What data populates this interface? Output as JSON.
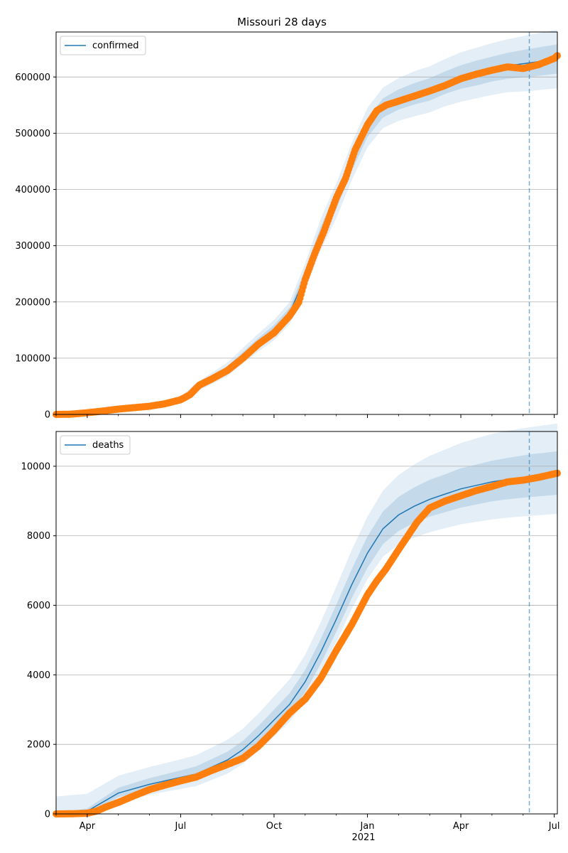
{
  "title": "Missouri 28 days",
  "colors": {
    "model": "#1f77b4",
    "observed": "#ff7f0e",
    "band": "#1f77b4",
    "grid": "#b0b0b0"
  },
  "x_axis": {
    "ticks": [
      "Apr",
      "Jul",
      "Oct",
      "Jan",
      "Apr",
      "Jul"
    ],
    "year_label": "2021"
  },
  "chart_data": [
    {
      "type": "line",
      "legend": [
        "confirmed"
      ],
      "legend_position": "upper-left",
      "grid": "horizontal",
      "x_unit": "months since 2020-03-01",
      "xlim": [
        0.0,
        16.1
      ],
      "ylim": [
        0,
        680000
      ],
      "yticks": [
        "0",
        "100000",
        "200000",
        "300000",
        "400000",
        "500000",
        "600000"
      ],
      "forecast_start": 15.2,
      "model": {
        "name": "confirmed",
        "points": [
          [
            0,
            0
          ],
          [
            1,
            3000
          ],
          [
            2,
            9000
          ],
          [
            3,
            14000
          ],
          [
            4,
            26000
          ],
          [
            4.5,
            48000
          ],
          [
            5,
            64000
          ],
          [
            5.5,
            80000
          ],
          [
            6,
            104000
          ],
          [
            6.5,
            128000
          ],
          [
            7,
            150000
          ],
          [
            7.5,
            180000
          ],
          [
            8,
            245000
          ],
          [
            8.5,
            320000
          ],
          [
            9,
            380000
          ],
          [
            9.5,
            450000
          ],
          [
            10,
            510000
          ],
          [
            10.5,
            545000
          ],
          [
            11,
            560000
          ],
          [
            11.5,
            570000
          ],
          [
            12,
            578000
          ],
          [
            12.5,
            590000
          ],
          [
            13,
            600000
          ],
          [
            13.5,
            607000
          ],
          [
            14,
            614000
          ],
          [
            14.5,
            620000
          ],
          [
            15.2,
            625000
          ],
          [
            16.1,
            632000
          ]
        ]
      },
      "bands": [
        {
          "level": "inner",
          "upper_offset": [
            0,
            500,
            1500,
            2500,
            3000,
            4000,
            5000,
            6000,
            7000,
            8000,
            9000,
            10000,
            12000,
            14000,
            15000,
            16000,
            17000,
            17000,
            18000,
            19000,
            20000,
            20000,
            21000,
            22000,
            22000,
            23000,
            25000,
            26000
          ],
          "lower_offset": [
            0,
            500,
            1500,
            2500,
            3000,
            4000,
            5000,
            6000,
            7000,
            8000,
            9000,
            10000,
            12000,
            14000,
            15000,
            16000,
            17000,
            17000,
            18000,
            19000,
            20000,
            20000,
            21000,
            22000,
            22000,
            23000,
            25000,
            26000
          ]
        },
        {
          "level": "outer",
          "upper_offset": [
            0,
            1000,
            3000,
            5000,
            6000,
            8000,
            10000,
            12000,
            14000,
            16000,
            18000,
            20000,
            24000,
            28000,
            31000,
            33000,
            35000,
            36000,
            38000,
            40000,
            41000,
            42000,
            44000,
            45000,
            46000,
            47000,
            50000,
            52000
          ],
          "lower_offset": [
            0,
            1000,
            3000,
            5000,
            6000,
            8000,
            10000,
            12000,
            14000,
            16000,
            18000,
            20000,
            24000,
            28000,
            31000,
            33000,
            35000,
            36000,
            38000,
            40000,
            41000,
            42000,
            44000,
            45000,
            46000,
            47000,
            50000,
            52000
          ]
        }
      ],
      "observed": {
        "points": [
          [
            0,
            0
          ],
          [
            0.5,
            500
          ],
          [
            1,
            3000
          ],
          [
            1.5,
            6000
          ],
          [
            2,
            9500
          ],
          [
            2.5,
            12000
          ],
          [
            3,
            14500
          ],
          [
            3.5,
            19000
          ],
          [
            4,
            26000
          ],
          [
            4.3,
            35000
          ],
          [
            4.6,
            52000
          ],
          [
            5,
            63000
          ],
          [
            5.5,
            78000
          ],
          [
            6,
            100000
          ],
          [
            6.5,
            125000
          ],
          [
            7,
            145000
          ],
          [
            7.5,
            175000
          ],
          [
            7.8,
            200000
          ],
          [
            8,
            240000
          ],
          [
            8.3,
            285000
          ],
          [
            8.6,
            325000
          ],
          [
            9,
            385000
          ],
          [
            9.3,
            420000
          ],
          [
            9.6,
            470000
          ],
          [
            10,
            515000
          ],
          [
            10.3,
            540000
          ],
          [
            10.6,
            550000
          ],
          [
            11,
            557000
          ],
          [
            11.5,
            566000
          ],
          [
            12,
            575000
          ],
          [
            12.5,
            585000
          ],
          [
            13,
            597000
          ],
          [
            13.5,
            605000
          ],
          [
            14,
            612000
          ],
          [
            14.5,
            618000
          ],
          [
            15,
            615000
          ],
          [
            15.5,
            622000
          ],
          [
            16,
            633000
          ],
          [
            16.1,
            638000
          ]
        ]
      }
    },
    {
      "type": "line",
      "legend": [
        "deaths"
      ],
      "legend_position": "upper-left",
      "grid": "horizontal",
      "x_unit": "months since 2020-03-01",
      "xlim": [
        0.0,
        16.1
      ],
      "ylim": [
        0,
        11000
      ],
      "yticks": [
        "0",
        "2000",
        "4000",
        "6000",
        "8000",
        "10000"
      ],
      "forecast_start": 15.2,
      "model": {
        "name": "deaths",
        "points": [
          [
            0,
            0
          ],
          [
            1,
            80
          ],
          [
            2,
            600
          ],
          [
            3,
            850
          ],
          [
            4,
            1050
          ],
          [
            4.5,
            1150
          ],
          [
            5,
            1350
          ],
          [
            5.5,
            1550
          ],
          [
            6,
            1850
          ],
          [
            6.5,
            2250
          ],
          [
            7,
            2700
          ],
          [
            7.5,
            3150
          ],
          [
            8,
            3800
          ],
          [
            8.5,
            4650
          ],
          [
            9,
            5600
          ],
          [
            9.5,
            6600
          ],
          [
            10,
            7500
          ],
          [
            10.5,
            8200
          ],
          [
            11,
            8600
          ],
          [
            11.5,
            8850
          ],
          [
            12,
            9050
          ],
          [
            12.5,
            9200
          ],
          [
            13,
            9350
          ],
          [
            13.5,
            9450
          ],
          [
            14,
            9550
          ],
          [
            14.5,
            9620
          ],
          [
            15.2,
            9700
          ],
          [
            16.1,
            9780
          ]
        ]
      },
      "bands": [
        {
          "level": "inner",
          "upper_offset": [
            0,
            80,
            150,
            180,
            200,
            220,
            230,
            240,
            250,
            280,
            300,
            320,
            340,
            380,
            420,
            450,
            480,
            500,
            520,
            540,
            560,
            570,
            590,
            600,
            610,
            620,
            640,
            650
          ],
          "lower_offset": [
            0,
            60,
            120,
            150,
            170,
            180,
            190,
            200,
            210,
            230,
            250,
            270,
            300,
            330,
            360,
            390,
            420,
            440,
            460,
            480,
            500,
            520,
            540,
            550,
            560,
            570,
            590,
            600
          ]
        },
        {
          "level": "outer",
          "upper_offset": [
            500,
            500,
            500,
            500,
            520,
            540,
            560,
            580,
            600,
            640,
            680,
            720,
            780,
            860,
            940,
            1000,
            1050,
            1100,
            1150,
            1200,
            1250,
            1280,
            1320,
            1350,
            1380,
            1400,
            1420,
            1450
          ],
          "lower_offset": [
            0,
            150,
            250,
            300,
            330,
            350,
            370,
            390,
            410,
            440,
            470,
            500,
            550,
            600,
            650,
            700,
            750,
            800,
            850,
            900,
            950,
            980,
            1020,
            1050,
            1080,
            1100,
            1130,
            1150
          ]
        }
      ],
      "observed": {
        "points": [
          [
            0,
            0
          ],
          [
            0.5,
            5
          ],
          [
            1,
            20
          ],
          [
            1.3,
            80
          ],
          [
            1.6,
            200
          ],
          [
            2,
            330
          ],
          [
            2.5,
            520
          ],
          [
            3,
            700
          ],
          [
            3.5,
            830
          ],
          [
            4,
            950
          ],
          [
            4.5,
            1060
          ],
          [
            5,
            1250
          ],
          [
            5.5,
            1420
          ],
          [
            6,
            1600
          ],
          [
            6.5,
            1950
          ],
          [
            7,
            2400
          ],
          [
            7.5,
            2900
          ],
          [
            8,
            3300
          ],
          [
            8.5,
            3900
          ],
          [
            9,
            4700
          ],
          [
            9.5,
            5450
          ],
          [
            10,
            6300
          ],
          [
            10.3,
            6700
          ],
          [
            10.6,
            7050
          ],
          [
            11,
            7600
          ],
          [
            11.3,
            8000
          ],
          [
            11.6,
            8400
          ],
          [
            12,
            8800
          ],
          [
            12.5,
            9000
          ],
          [
            13,
            9150
          ],
          [
            13.5,
            9300
          ],
          [
            14,
            9420
          ],
          [
            14.5,
            9550
          ],
          [
            15,
            9600
          ],
          [
            15.5,
            9680
          ],
          [
            16,
            9780
          ],
          [
            16.1,
            9800
          ]
        ]
      }
    }
  ]
}
